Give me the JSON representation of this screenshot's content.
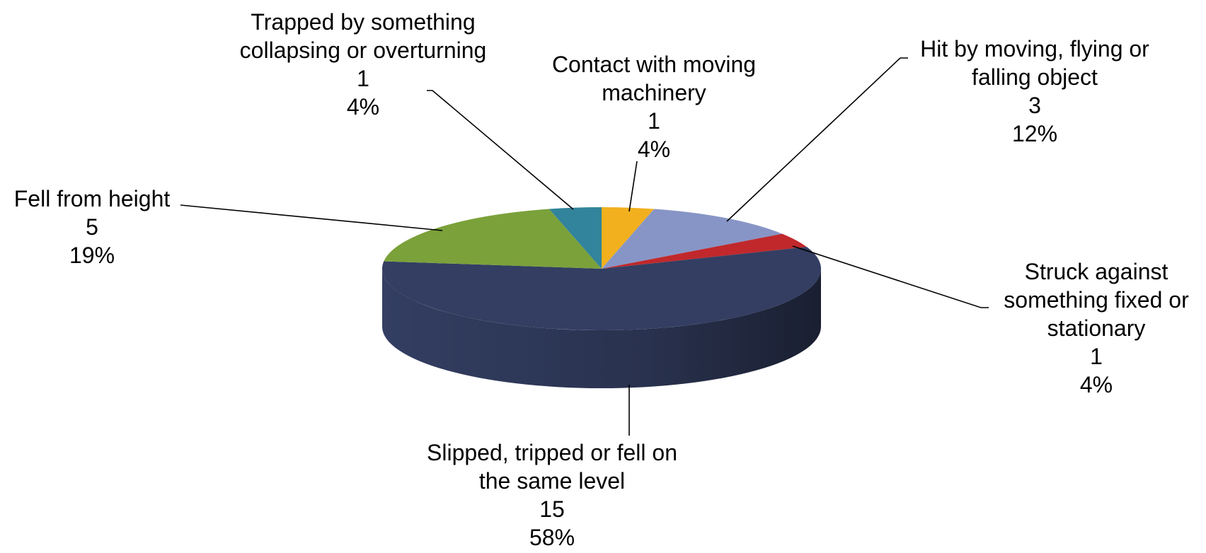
{
  "chart_data": {
    "type": "pie3d",
    "categories": [
      "Contact with moving machinery",
      "Hit by moving, flying or falling object",
      "Struck against something fixed or stationary",
      "Slipped, tripped or fell on the same level",
      "Fell from height",
      "Trapped by something collapsing or overturning"
    ],
    "values": [
      1,
      3,
      1,
      15,
      5,
      1
    ],
    "percent_labels": [
      "4%",
      "12%",
      "4%",
      "58%",
      "19%",
      "4%"
    ],
    "colors": [
      "#f2b01e",
      "#8795c6",
      "#c0282c",
      "#333e62",
      "#7ba13a",
      "#31849b"
    ]
  }
}
